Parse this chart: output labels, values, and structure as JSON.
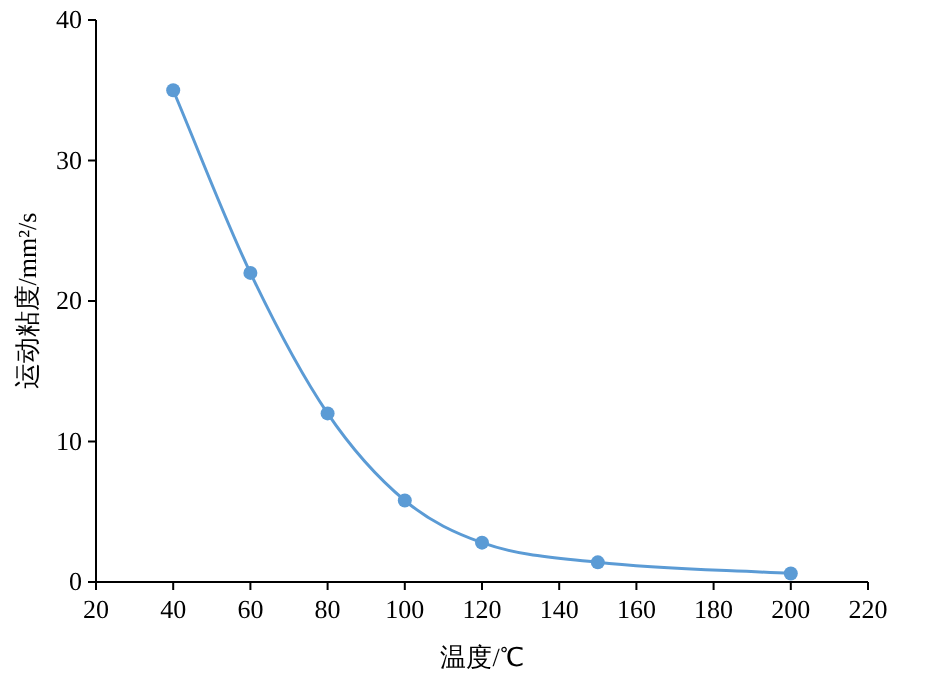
{
  "chart_data": {
    "type": "line",
    "xlabel": "温度/℃",
    "ylabel": "运动粘度/mm²/s",
    "x": [
      40,
      60,
      80,
      100,
      120,
      150,
      200
    ],
    "series": [
      {
        "color": "#5b9bd5",
        "values": [
          35,
          22,
          12,
          5.8,
          2.8,
          1.4,
          0.6
        ]
      }
    ],
    "xlim": [
      20,
      220
    ],
    "ylim": [
      0,
      40
    ],
    "xticks": [
      20,
      40,
      60,
      80,
      100,
      120,
      140,
      160,
      180,
      200,
      220
    ],
    "yticks": [
      0,
      10,
      20,
      30,
      40
    ],
    "marker": "circle"
  }
}
